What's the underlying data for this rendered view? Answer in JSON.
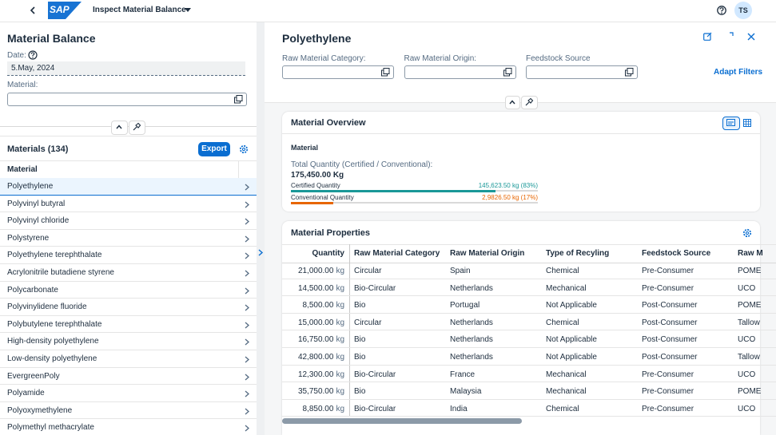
{
  "header": {
    "logo": "SAP",
    "app_title": "Inspect Material Balance",
    "avatar": "TS"
  },
  "left_panel": {
    "title": "Material Balance",
    "date_label": "Date:",
    "date_value": "5.May, 2024",
    "material_label": "Material:",
    "list": {
      "title": "Materials (134)",
      "export_button": "Export",
      "column": "Material",
      "items": [
        "Polyethylene",
        "Polyvinyl butyral",
        "Polyvinyl chloride",
        "Polystyrene",
        "Polyethylene terephthalate",
        "Acrylonitrile butadiene styrene",
        "Polycarbonate",
        "Polyvinylidene fluoride",
        "Polybutylene terephthalate",
        "High-density polyethylene",
        "Low-density polyethylene",
        "EvergreenPoly",
        "Polyamide",
        "Polyoxymethylene",
        "Polymethyl methacrylate"
      ]
    }
  },
  "detail": {
    "title": "Polyethylene",
    "filters": [
      "Raw Material Category:",
      "Raw Material Origin:",
      "Feedstock Source"
    ],
    "adapt_filters": "Adapt Filters",
    "overview": {
      "title": "Material Overview",
      "section": "Material",
      "total_label": "Total Quantity (Certified / Conventional):",
      "total_value": "175,450.00 Kg",
      "bars": [
        {
          "label": "Certified Quantity",
          "value_label": "145,623.50 kg  (83%)",
          "percent": 83,
          "color": "#1a9898"
        },
        {
          "label": "Conventional Quantity",
          "value_label": "2,9826.50 kg (17%)",
          "percent": 17,
          "color": "#e76500"
        }
      ]
    },
    "properties": {
      "title": "Material Properties",
      "unit": "kg",
      "columns": [
        "Quantity",
        "Raw Material Category",
        "Raw Material Origin",
        "Type of Recyling",
        "Feedstock Source",
        "Raw M"
      ],
      "rows": [
        [
          "21,000.00",
          "Circular",
          "Spain",
          "Chemical",
          "Pre-Consumer",
          "POME"
        ],
        [
          "14,500.00",
          "Bio-Circular",
          "Netherlands",
          "Mechanical",
          "Pre-Consumer",
          "UCO"
        ],
        [
          "8,500.00",
          "Bio",
          "Portugal",
          "Not Applicable",
          "Post-Consumer",
          "POME"
        ],
        [
          "15,000.00",
          "Circular",
          "Netherlands",
          "Chemical",
          "Post-Consumer",
          "Tallow"
        ],
        [
          "16,750.00",
          "Bio",
          "Netherlands",
          "Not Applicable",
          "Post-Consumer",
          "UCO"
        ],
        [
          "42,800.00",
          "Bio",
          "Netherlands",
          "Not Applicable",
          "Post-Consumer",
          "Tallow"
        ],
        [
          "12,300.00",
          "Bio-Circular",
          "France",
          "Mechanical",
          "Pre-Consumer",
          "UCO"
        ],
        [
          "35,750.00",
          "Bio",
          "Malaysia",
          "Mechanical",
          "Pre-Consumer",
          "POME"
        ],
        [
          "8,850.00",
          "Bio-Circular",
          "India",
          "Chemical",
          "Pre-Consumer",
          "UCO"
        ]
      ]
    }
  }
}
